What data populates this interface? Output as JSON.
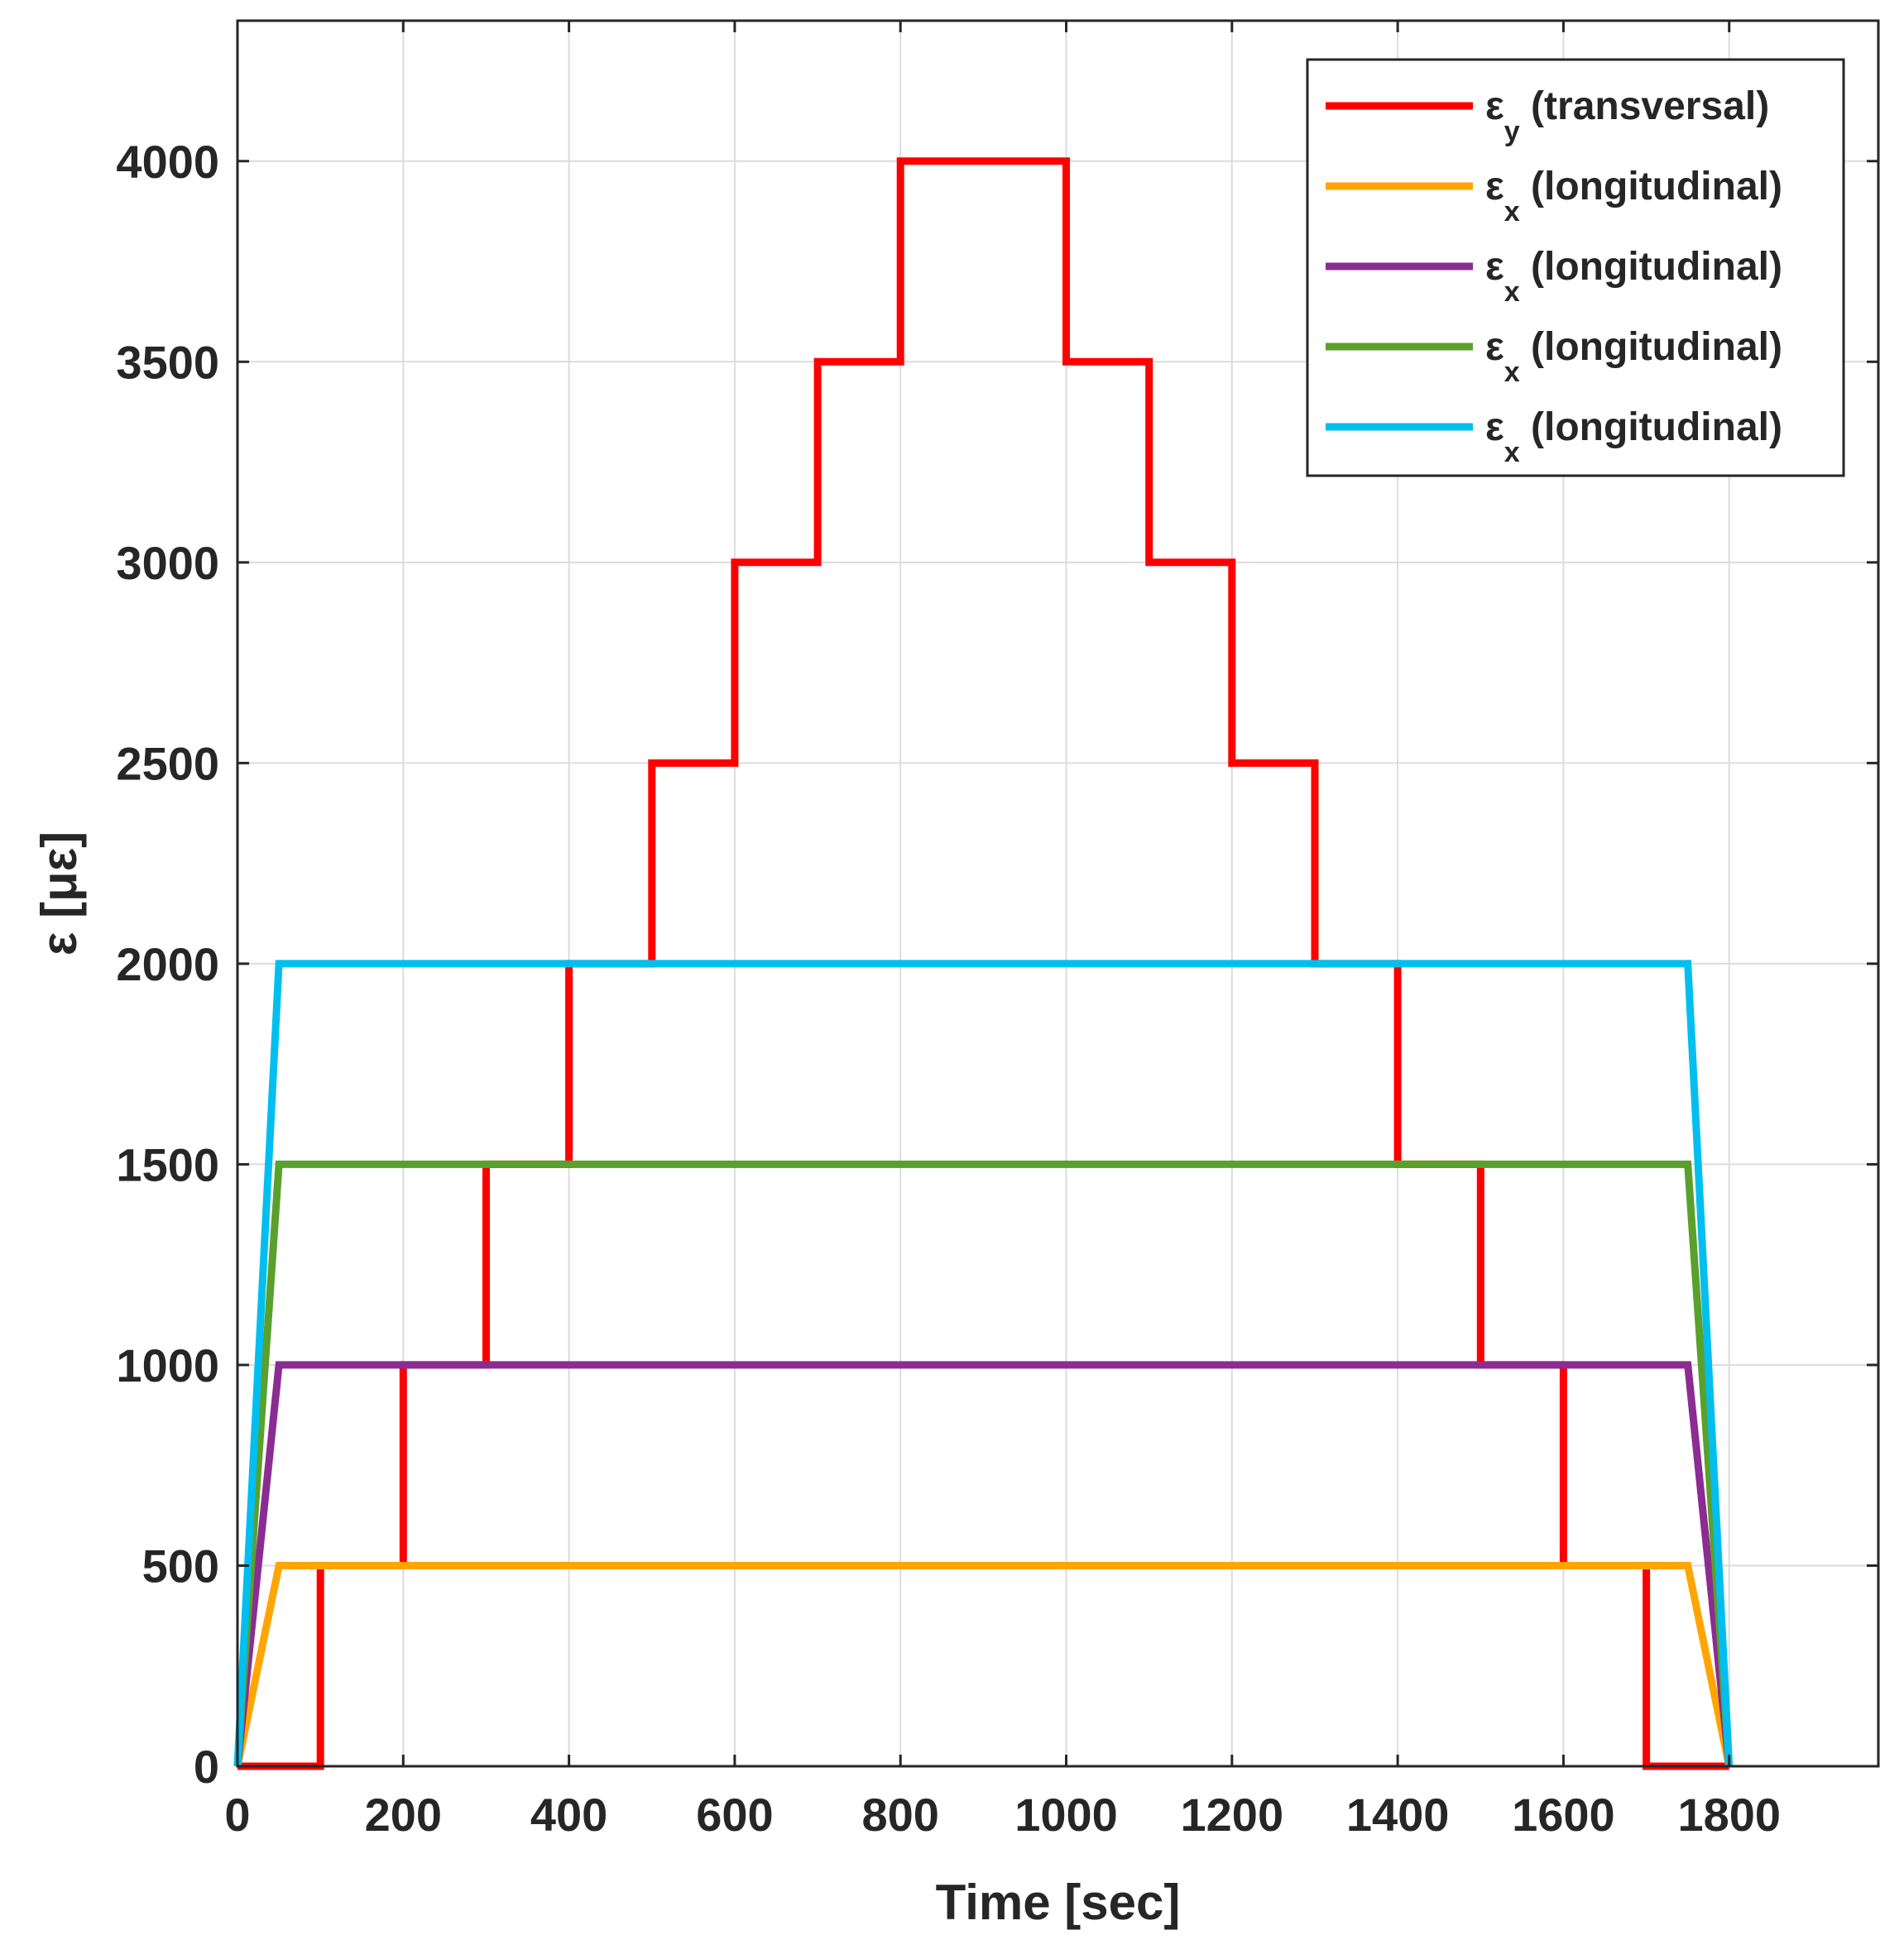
{
  "chart_data": {
    "type": "line",
    "title": "",
    "xlabel": "Time [sec]",
    "ylabel": "ε [με]",
    "xlim": [
      0,
      1980
    ],
    "ylim": [
      0,
      4350
    ],
    "xticks": [
      0,
      200,
      400,
      600,
      800,
      1000,
      1200,
      1400,
      1600,
      1800
    ],
    "yticks": [
      0,
      500,
      1000,
      1500,
      2000,
      2500,
      3000,
      3500,
      4000
    ],
    "xtick_labels": [
      "0",
      "200",
      "400",
      "600",
      "800",
      "1000",
      "1200",
      "1400",
      "1600",
      "1800"
    ],
    "ytick_labels": [
      "0",
      "500",
      "1000",
      "1500",
      "2000",
      "2500",
      "3000",
      "3500",
      "4000"
    ],
    "grid": true,
    "legend_position": "top-right",
    "series": [
      {
        "name": "εy (transversal)",
        "legend_main": "ε",
        "legend_sub": "y",
        "legend_rest": " (transversal)",
        "color": "#ff0000",
        "x": [
          0,
          100,
          100,
          200,
          200,
          300,
          300,
          400,
          400,
          500,
          500,
          600,
          600,
          700,
          700,
          800,
          800,
          1000,
          1000,
          1100,
          1100,
          1200,
          1200,
          1300,
          1300,
          1400,
          1400,
          1500,
          1500,
          1600,
          1600,
          1700,
          1700,
          1800
        ],
        "y": [
          0,
          0,
          500,
          500,
          1000,
          1000,
          1500,
          1500,
          2000,
          2000,
          2500,
          2500,
          3000,
          3000,
          3500,
          3500,
          4000,
          4000,
          3500,
          3500,
          3000,
          3000,
          2500,
          2500,
          2000,
          2000,
          1500,
          1500,
          1000,
          1000,
          500,
          500,
          0,
          0
        ]
      },
      {
        "name": "εx (longitudinal)",
        "legend_main": "ε",
        "legend_sub": "x",
        "legend_rest": " (longitudinal)",
        "color": "#ffa500",
        "x": [
          0,
          50,
          1750,
          1800
        ],
        "y": [
          0,
          500,
          500,
          0
        ]
      },
      {
        "name": "εx (longitudinal)",
        "legend_main": "ε",
        "legend_sub": "x",
        "legend_rest": " (longitudinal)",
        "color": "#8b2c92",
        "x": [
          0,
          50,
          1750,
          1800
        ],
        "y": [
          0,
          1000,
          1000,
          0
        ]
      },
      {
        "name": "εx (longitudinal)",
        "legend_main": "ε",
        "legend_sub": "x",
        "legend_rest": " (longitudinal)",
        "color": "#5aa02c",
        "x": [
          0,
          50,
          1750,
          1800
        ],
        "y": [
          0,
          1500,
          1500,
          0
        ]
      },
      {
        "name": "εx (longitudinal)",
        "legend_main": "ε",
        "legend_sub": "x",
        "legend_rest": " (longitudinal)",
        "color": "#00bfef",
        "x": [
          0,
          50,
          1750,
          1800
        ],
        "y": [
          0,
          2000,
          2000,
          0
        ]
      }
    ]
  }
}
